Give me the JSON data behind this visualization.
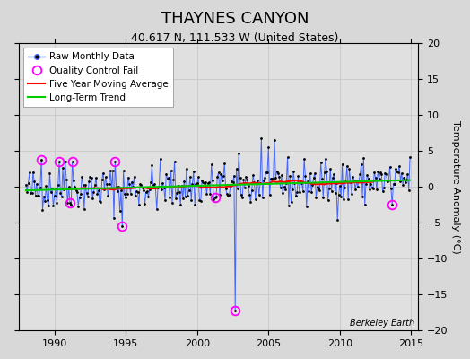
{
  "title": "THAYNES CANYON",
  "subtitle": "40.617 N, 111.533 W (United States)",
  "ylabel": "Temperature Anomaly (°C)",
  "watermark": "Berkeley Earth",
  "xlim": [
    1987.5,
    2015.5
  ],
  "ylim": [
    -20,
    20
  ],
  "yticks": [
    -20,
    -15,
    -10,
    -5,
    0,
    5,
    10,
    15,
    20
  ],
  "xticks": [
    1990,
    1995,
    2000,
    2005,
    2010,
    2015
  ],
  "bg_color": "#d8d8d8",
  "plot_bg_color": "#e0e0e0",
  "raw_line_color": "#4466ff",
  "raw_marker_color": "#000000",
  "moving_avg_color": "#ff0000",
  "trend_color": "#00cc00",
  "qc_fail_color": "#ff00ff",
  "title_fontsize": 13,
  "subtitle_fontsize": 9,
  "ylabel_fontsize": 8,
  "tick_fontsize": 8,
  "legend_fontsize": 7.5,
  "watermark_fontsize": 7,
  "seed": 42,
  "start_year": 1988,
  "n_months": 324,
  "raw_linewidth": 0.7,
  "raw_markersize": 4,
  "moving_avg_linewidth": 1.5,
  "trend_linewidth": 1.5,
  "grid_color": "#c8c8c8",
  "grid_linewidth": 0.6
}
